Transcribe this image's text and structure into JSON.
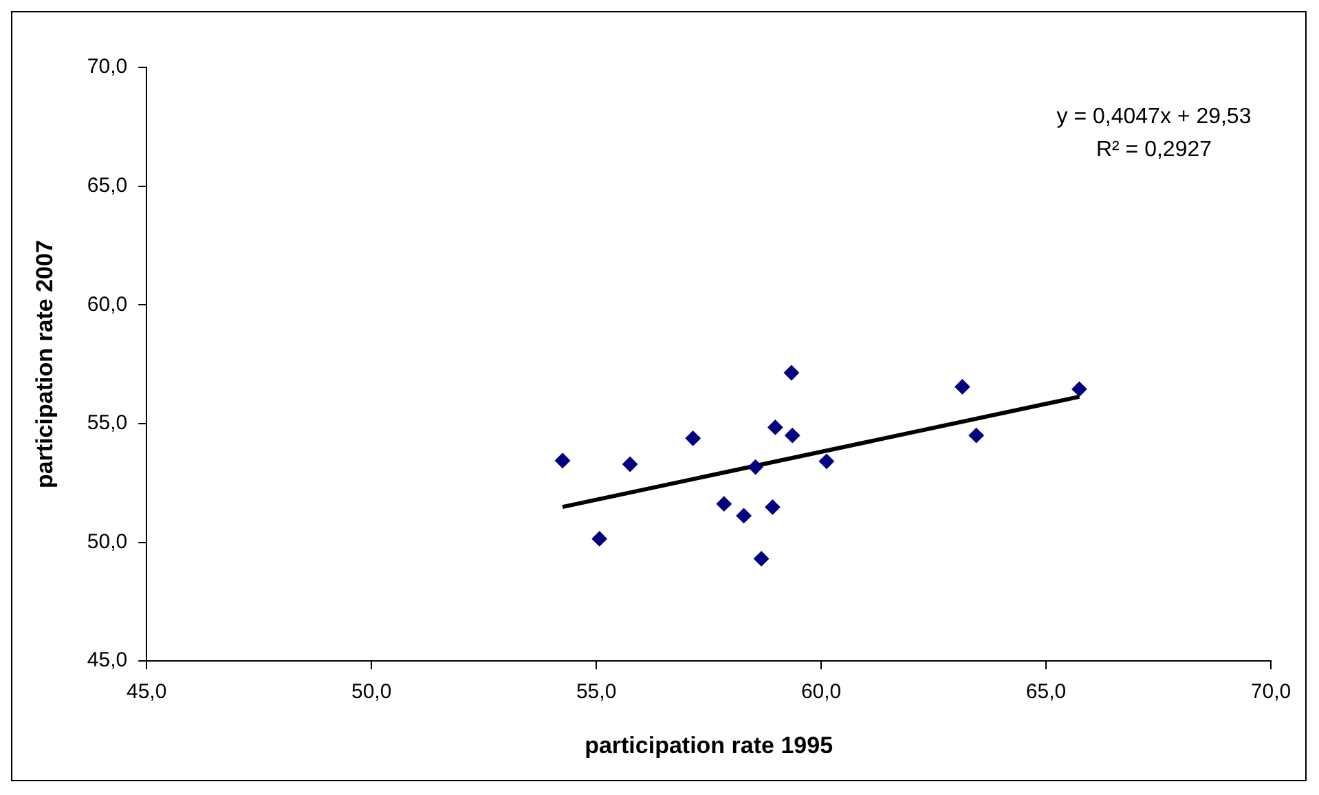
{
  "chart_data": {
    "type": "scatter",
    "xlabel": "participation rate 1995",
    "ylabel": "participation rate 2007",
    "grid": false,
    "legend": false,
    "xlim": [
      45,
      70
    ],
    "ylim": [
      45,
      70
    ],
    "xticks": [
      {
        "value": 45,
        "label": "45,0"
      },
      {
        "value": 50,
        "label": "50,0"
      },
      {
        "value": 55,
        "label": "55,0"
      },
      {
        "value": 60,
        "label": "60,0"
      },
      {
        "value": 65,
        "label": "65,0"
      },
      {
        "value": 70,
        "label": "70,0"
      }
    ],
    "yticks": [
      {
        "value": 45,
        "label": "45,0"
      },
      {
        "value": 50,
        "label": "50,0"
      },
      {
        "value": 55,
        "label": "55,0"
      },
      {
        "value": 60,
        "label": "60,0"
      },
      {
        "value": 65,
        "label": "65,0"
      },
      {
        "value": 70,
        "label": "70,0"
      }
    ],
    "annotations": [
      "y = 0,4047x + 29,53",
      "R² = 0,2927"
    ],
    "series": [
      {
        "marker": "diamond",
        "color": "#000080",
        "x": [
          54.25,
          55.07,
          55.75,
          57.15,
          57.84,
          58.28,
          58.54,
          58.67,
          58.92,
          58.98,
          59.34,
          59.36,
          60.12,
          63.14,
          63.45,
          65.74
        ],
        "values": [
          53.44,
          50.15,
          53.29,
          54.38,
          51.62,
          51.12,
          53.17,
          49.31,
          51.48,
          54.84,
          57.14,
          54.5,
          53.41,
          56.55,
          54.5,
          56.45
        ]
      },
      {
        "type": "line",
        "marker": "none",
        "color": "#000000",
        "x": [
          54.25,
          65.74
        ],
        "values": [
          51.49,
          56.13
        ]
      }
    ]
  }
}
